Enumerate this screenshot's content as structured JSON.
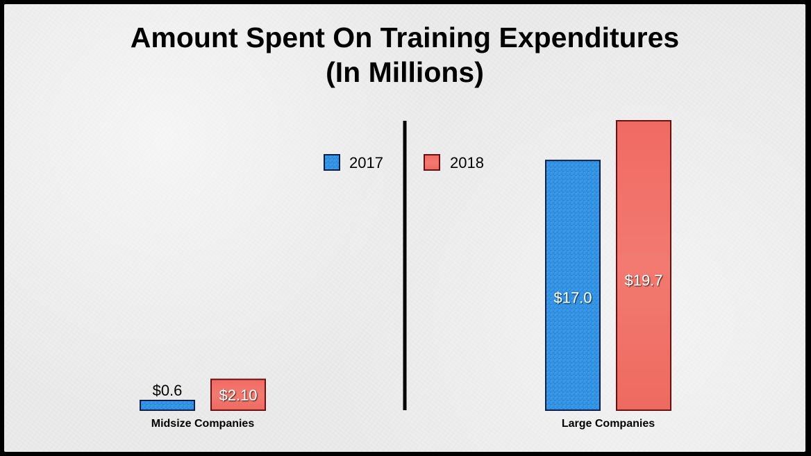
{
  "chart_data": {
    "type": "bar",
    "title_line1": "Amount Spent On Training Expenditures",
    "title_line2": "(In Millions)",
    "legend": [
      {
        "name": "2017",
        "color": "#2f8fdf"
      },
      {
        "name": "2018",
        "color": "#f07068"
      }
    ],
    "groups": [
      {
        "category": "Midsize Companies",
        "values": [
          0.6,
          2.1
        ],
        "labels": [
          "$0.6",
          "$2.10"
        ]
      },
      {
        "category": "Large Companies",
        "values": [
          17.0,
          19.7
        ],
        "labels": [
          "$17.0",
          "$19.7"
        ]
      }
    ],
    "ylim": [
      0,
      19.7
    ],
    "legend_position": "top-center",
    "grid": false
  }
}
